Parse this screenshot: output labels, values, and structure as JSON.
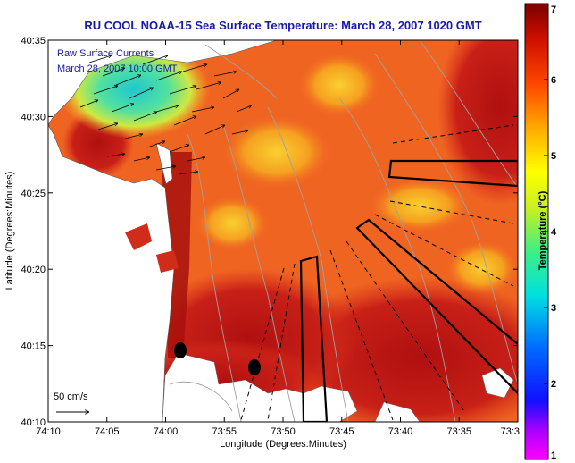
{
  "title": "RU COOL  NOAA-15  Sea Surface Temperature:  March 28, 2007 1020 GMT",
  "overlay": {
    "line1": "Raw Surface Currents",
    "line2": "March 28, 2007 10:00 GMT"
  },
  "scale": {
    "label": "50 cm/s"
  },
  "colorbar": {
    "title": "Temperature (°C)",
    "ticks": [
      "7",
      "6",
      "5",
      "4",
      "3",
      "2",
      "1"
    ]
  },
  "axes": {
    "xlabel": "Longitude (Degrees:Minutes)",
    "ylabel": "Latitude (Degrees:Minutes)",
    "xticks": [
      "74:10",
      "74:05",
      "74:00",
      "73:55",
      "73:50",
      "73:45",
      "73:40",
      "73:35",
      "73:3"
    ],
    "yticks": [
      "40:35",
      "40:30",
      "40:25",
      "40:20",
      "40:15",
      "40:10"
    ]
  },
  "colors": {
    "title": "#1a1aa8",
    "sst_warm": "#b8140e",
    "sst_mid": "#f05a1e",
    "sst_cool": "#f5c828",
    "cold_patch": "#2ad0c8",
    "land": "#ffffff",
    "bathymetry": "#a0a0a0"
  }
}
